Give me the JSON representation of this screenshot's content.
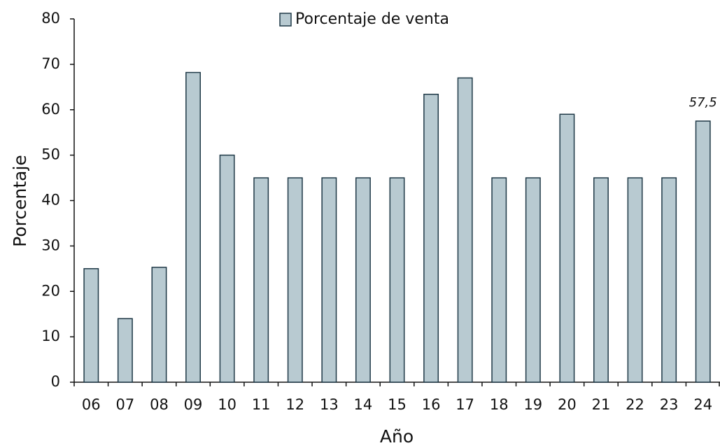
{
  "chart_data": {
    "type": "bar",
    "x_label": "Año",
    "y_label": "Porcentaje",
    "categories": [
      "06",
      "07",
      "08",
      "09",
      "10",
      "11",
      "12",
      "13",
      "14",
      "15",
      "16",
      "17",
      "18",
      "19",
      "20",
      "21",
      "22",
      "23",
      "24"
    ],
    "series": [
      {
        "name": "Porcentaje de venta",
        "color": "#b8cad1",
        "values": [
          25,
          14,
          25.3,
          68.2,
          50,
          45,
          45,
          45,
          45,
          45,
          63.4,
          67,
          45,
          45,
          59,
          45,
          45,
          45,
          57.5
        ],
        "value_labels": [
          null,
          null,
          null,
          null,
          null,
          null,
          null,
          null,
          null,
          null,
          null,
          null,
          null,
          null,
          null,
          null,
          null,
          null,
          "57,5"
        ]
      }
    ],
    "ylim": [
      0,
      80
    ],
    "yticks": [
      0,
      10,
      20,
      30,
      40,
      50,
      60,
      70,
      80
    ],
    "grid": false,
    "legend": "top"
  }
}
